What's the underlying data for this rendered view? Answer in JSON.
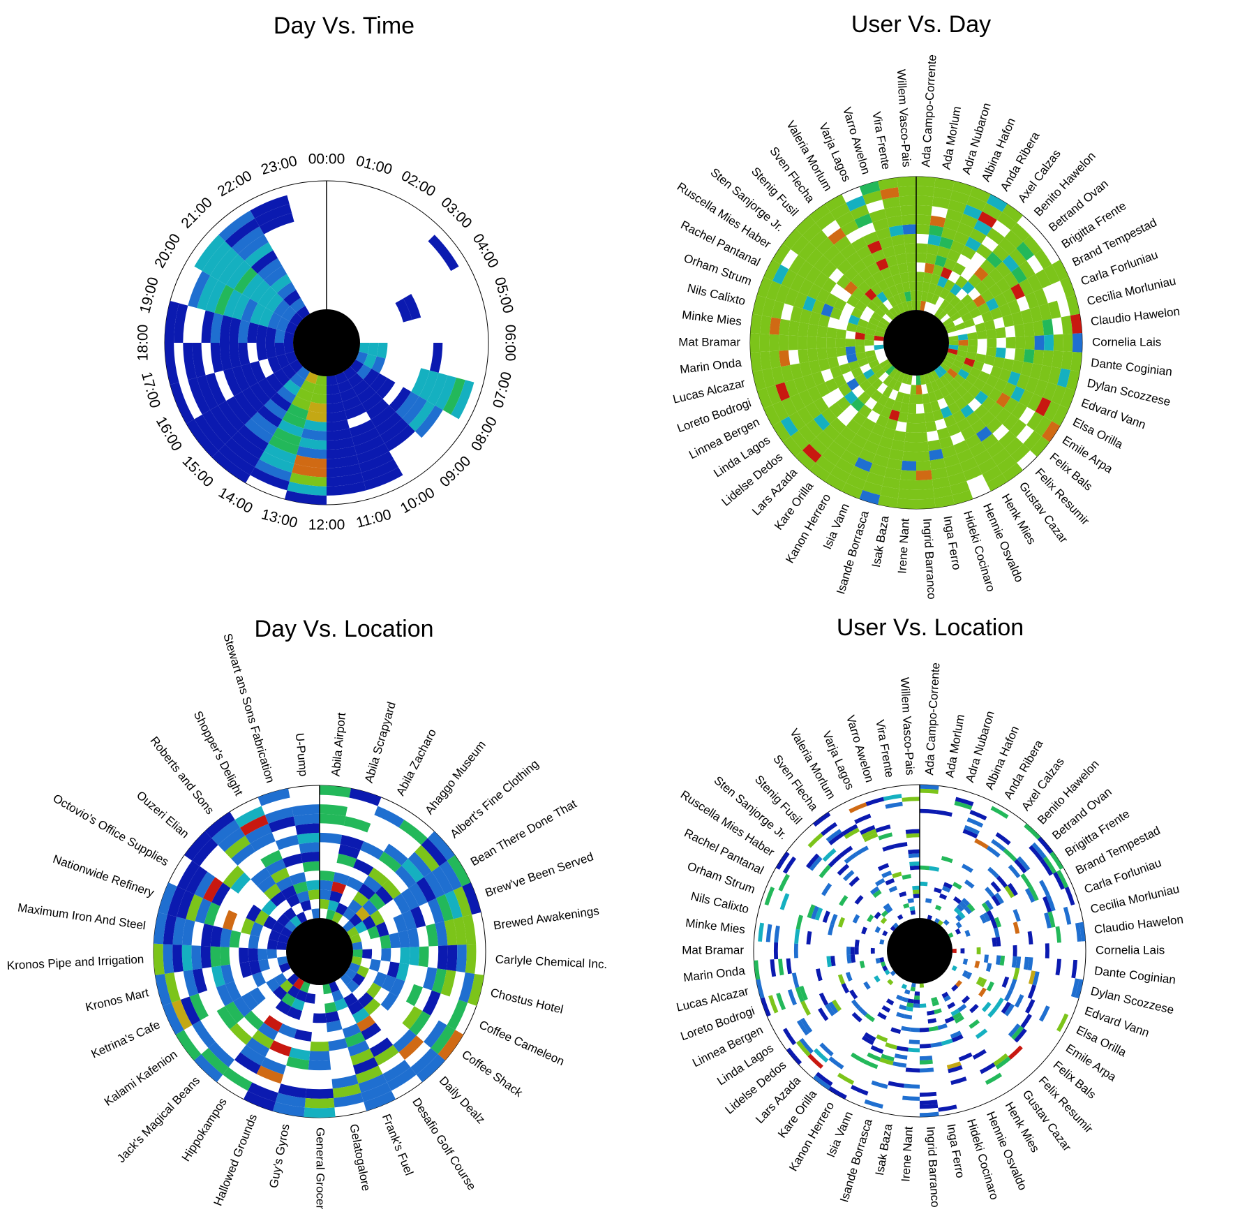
{
  "chart_data": [
    {
      "type": "heatmap",
      "layout": "radial",
      "title": "Day Vs. Time",
      "angular_axis": {
        "labels": [
          "00:00",
          "01:00",
          "02:00",
          "03:00",
          "04:00",
          "05:00",
          "06:00",
          "07:00",
          "08:00",
          "09:00",
          "10:00",
          "11:00",
          "12:00",
          "13:00",
          "14:00",
          "15:00",
          "16:00",
          "17:00",
          "18:00",
          "19:00",
          "20:00",
          "21:00",
          "22:00",
          "23:00"
        ]
      },
      "rings": 14,
      "value_range": [
        0,
        1
      ],
      "colormap": [
        "#0b1ab0",
        "#1f6fd0",
        "#15b0c0",
        "#23b85a",
        "#7cc41a",
        "#c4a814",
        "#d06a14",
        "#c81810"
      ],
      "values": [
        [
          0,
          0,
          0,
          0,
          0,
          0,
          0,
          0,
          0,
          0,
          0,
          0,
          0,
          0
        ],
        [
          0,
          0,
          0,
          0,
          0,
          0,
          0,
          0,
          0,
          0,
          0,
          0,
          0,
          0
        ],
        [
          0,
          0,
          0,
          0,
          0,
          0,
          0,
          0,
          0,
          0,
          0,
          0,
          0,
          0
        ],
        [
          0,
          0,
          0,
          0,
          0,
          0,
          0,
          0,
          0,
          0,
          0,
          0,
          0.05,
          0
        ],
        [
          0,
          0,
          0,
          0,
          0,
          0.05,
          0.05,
          0,
          0,
          0,
          0,
          0,
          0,
          0
        ],
        [
          0,
          0,
          0,
          0,
          0,
          0,
          0,
          0,
          0,
          0,
          0,
          0,
          0,
          0
        ],
        [
          0.3,
          0.3,
          0.25,
          0,
          0,
          0,
          0,
          0,
          0.05,
          0,
          0,
          0,
          0,
          0
        ],
        [
          0.2,
          0.25,
          0.2,
          0,
          0,
          0,
          0,
          0.3,
          0.35,
          0.3,
          0.3,
          0.4,
          0.35,
          0
        ],
        [
          0.1,
          0.15,
          0.1,
          0.1,
          0.1,
          0,
          0.1,
          0.15,
          0.2,
          0.25,
          0.2,
          0,
          0,
          0
        ],
        [
          0.1,
          0.05,
          0.1,
          0.05,
          0.1,
          0.1,
          0.05,
          0.1,
          0.1,
          0.05,
          0,
          0,
          0,
          0
        ],
        [
          0.1,
          0.05,
          0.1,
          0.1,
          0.05,
          0,
          0.05,
          0.05,
          0.1,
          0.1,
          0.05,
          0.1,
          0.1,
          0
        ],
        [
          0.05,
          0.1,
          0.05,
          0.1,
          0.05,
          0.1,
          0.05,
          0.1,
          0.05,
          0.1,
          0.05,
          0.05,
          0.1,
          0
        ],
        [
          0.6,
          0.55,
          0.6,
          0.7,
          0.65,
          0.3,
          0.2,
          0.3,
          0.2,
          0.75,
          0.8,
          0.5,
          0.3,
          0.05
        ],
        [
          0.7,
          0.6,
          0.5,
          0.6,
          0.45,
          0.4,
          0.3,
          0.45,
          0.4,
          0.35,
          0.25,
          0.15,
          0.05,
          0
        ],
        [
          0.2,
          0.15,
          0.25,
          0.2,
          0.1,
          0.15,
          0.1,
          0.2,
          0.15,
          0.1,
          0.05,
          0.1,
          0.05,
          0.1
        ],
        [
          0.05,
          0.1,
          0.05,
          0.1,
          0.05,
          0.05,
          0.1,
          0.1,
          0.05,
          0.1,
          0.05,
          0.1,
          0.1,
          0.1
        ],
        [
          0.05,
          0.1,
          0.05,
          0,
          0.05,
          0.1,
          0.05,
          0.1,
          0,
          0.1,
          0.05,
          0.05,
          0,
          0.05
        ],
        [
          0.1,
          0.05,
          0.1,
          0.05,
          0,
          0.05,
          0.1,
          0.05,
          0.1,
          0,
          0.05,
          0.1,
          0,
          0.05
        ],
        [
          0.1,
          0.15,
          0.1,
          0.05,
          0.1,
          0.15,
          0.1,
          0.05,
          0.15,
          0.1,
          0,
          0,
          0.05,
          0.05
        ],
        [
          0.1,
          0.15,
          0.2,
          0.3,
          0.25,
          0.2,
          0.35,
          0.3,
          0.4,
          0.3,
          0.3,
          0.2,
          0,
          0
        ],
        [
          0.1,
          0.2,
          0.15,
          0.25,
          0.3,
          0.35,
          0.3,
          0.45,
          0.25,
          0.35,
          0.25,
          0.35,
          0.3,
          0
        ],
        [
          0.1,
          0.15,
          0.1,
          0.15,
          0.3,
          0.2,
          0.15,
          0.1,
          0.25,
          0.2,
          0.15,
          0.1,
          0.2,
          0
        ],
        [
          0,
          0,
          0,
          0,
          0,
          0,
          0,
          0,
          0,
          0,
          0.05,
          0.1,
          0.05,
          0
        ],
        [
          0,
          0,
          0,
          0,
          0,
          0,
          0,
          0,
          0,
          0,
          0,
          0,
          0,
          0
        ]
      ]
    },
    {
      "type": "heatmap",
      "layout": "radial",
      "title": "User Vs. Day",
      "angular_axis": {
        "labels": [
          "Ada Campo-Corrente",
          "Ada Morlum",
          "Adra Nubaron",
          "Albina Hafon",
          "Anda Ribera",
          "Axel Calzas",
          "Benito Hawelon",
          "Betrand Ovan",
          "Brigitta Frente",
          "Brand Tempestad",
          "Carla Forluniau",
          "Cecilia Morluniau",
          "Claudio Hawelon",
          "Cornelia Lais",
          "Dante Coginian",
          "Dylan Scozzese",
          "Edvard Vann",
          "Elsa Orilla",
          "Emile Arpa",
          "Felix Bals",
          "Felix Resumir",
          "Gustav Cazar",
          "Henk Mies",
          "Hennie Osvaldo",
          "Hideki Cocinaro",
          "Inga Ferro",
          "Ingrid Barranco",
          "Irene Nant",
          "Isak Baza",
          "Isande Borrasca",
          "Isia Vann",
          "Kanon Herrero",
          "Kare Orilla",
          "Lars Azada",
          "Lidelse Dedos",
          "Linda Lagos",
          "Linnea Bergen",
          "Loreto Bodrogi",
          "Lucas Alcazar",
          "Marin Onda",
          "Mat Bramar",
          "Minke Mies",
          "Nils Calixto",
          "Orham Strum",
          "Rachel Pantanal",
          "Ruscella Mies Haber",
          "Sten Sanjorge Jr.",
          "Stenig Fusil",
          "Sven Flecha",
          "Valeria Morlum",
          "Varja Lagos",
          "Varro Awelon",
          "Vira Frente",
          "Willem Vasco-Pais"
        ]
      },
      "rings": 14,
      "value_range": [
        0,
        1
      ],
      "colormap": [
        "#0b1ab0",
        "#1f6fd0",
        "#15b0c0",
        "#23b85a",
        "#7cc41a",
        "#c4a814",
        "#d06a14",
        "#c81810"
      ],
      "generator": "dense",
      "seed": 23
    },
    {
      "type": "heatmap",
      "layout": "radial",
      "title": "Day Vs. Location",
      "angular_axis": {
        "labels": [
          "Abila Airport",
          "Abila Scrapyard",
          "Abila Zacharo",
          "Ahaggo Museum",
          "Albert's Fine Clothing",
          "Bean There Done That",
          "Brew've Been Served",
          "Brewed Awakenings",
          "Carlyle Chemical Inc.",
          "Chostus Hotel",
          "Coffee Cameleon",
          "Coffee Shack",
          "Daily Dealz",
          "Desafio Golf Course",
          "Frank's Fuel",
          "Gelatogalore",
          "General Grocer",
          "Guy's Gyros",
          "Hallowed Grounds",
          "Hippokampos",
          "Jack's Magical Beans",
          "Kalami Kafenion",
          "Ketrina's Cafe",
          "Kronos Mart",
          "Kronos Pipe and Irrigation",
          "Maximum Iron And Steel",
          "Nationwide Refinery",
          "Octovio's Office Supplies",
          "Ouzeri Elian",
          "Roberts and Sons",
          "Shopper's Delight",
          "Stewart ans Sons Fabrication",
          "U-Pump"
        ]
      },
      "rings": 14,
      "value_range": [
        0,
        1
      ],
      "colormap": [
        "#0b1ab0",
        "#1f6fd0",
        "#15b0c0",
        "#23b85a",
        "#7cc41a",
        "#c4a814",
        "#d06a14",
        "#c81810"
      ],
      "generator": "medium",
      "seed": 57
    },
    {
      "type": "heatmap",
      "layout": "radial",
      "title": "User Vs. Location",
      "angular_axis": {
        "labels": [
          "Ada Campo-Corrente",
          "Ada Morlum",
          "Adra Nubaron",
          "Albina Hafon",
          "Anda Ribera",
          "Axel Calzas",
          "Benito Hawelon",
          "Betrand Ovan",
          "Brigitta Frente",
          "Brand Tempestad",
          "Carla Forluniau",
          "Cecilia Morluniau",
          "Claudio Hawelon",
          "Cornelia Lais",
          "Dante Coginian",
          "Dylan Scozzese",
          "Edvard Vann",
          "Elsa Orilla",
          "Emile Arpa",
          "Felix Bals",
          "Felix Resumir",
          "Gustav Cazar",
          "Henk Mies",
          "Hennie Osvaldo",
          "Hideki Cocinaro",
          "Inga Ferro",
          "Ingrid Barranco",
          "Irene Nant",
          "Isak Baza",
          "Isande Borrasca",
          "Isia Vann",
          "Kanon Herrero",
          "Kare Orilla",
          "Lars Azada",
          "Lidelse Dedos",
          "Linda Lagos",
          "Linnea Bergen",
          "Loreto Bodrogi",
          "Lucas Alcazar",
          "Marin Onda",
          "Mat Bramar",
          "Minke Mies",
          "Nils Calixto",
          "Orham Strum",
          "Rachel Pantanal",
          "Ruscella Mies Haber",
          "Sten Sanjorge Jr.",
          "Stenig Fusil",
          "Sven Flecha",
          "Valeria Morlum",
          "Varja Lagos",
          "Varro Awelon",
          "Vira Frente",
          "Willem Vasco-Pais"
        ]
      },
      "rings": 33,
      "value_range": [
        0,
        1
      ],
      "colormap": [
        "#0b1ab0",
        "#1f6fd0",
        "#15b0c0",
        "#23b85a",
        "#7cc41a",
        "#c4a814",
        "#d06a14",
        "#c81810"
      ],
      "generator": "sparse",
      "seed": 91
    }
  ]
}
